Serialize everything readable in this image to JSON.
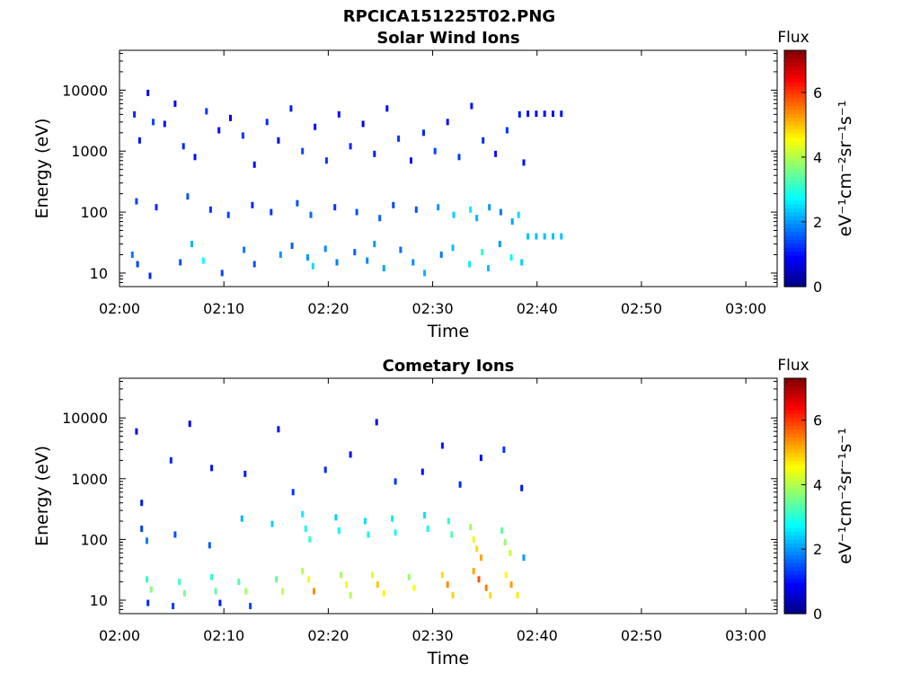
{
  "figure": {
    "title": "RPCICA151225T02.PNG"
  },
  "chart_data": [
    {
      "type": "heatmap",
      "title": "Solar Wind Ions",
      "xlabel": "Time",
      "ylabel": "Energy (eV)",
      "x_tick_labels": [
        "02:00",
        "02:10",
        "02:20",
        "02:30",
        "02:40",
        "02:50",
        "03:00"
      ],
      "x_range_minutes": [
        0,
        63
      ],
      "y_scale": "log",
      "y_tick_labels": [
        "10",
        "100",
        "1000",
        "10000"
      ],
      "y_range": [
        6,
        45000
      ],
      "colorbar": {
        "label": "eV⁻¹cm⁻²sr⁻¹s⁻¹",
        "title": "Flux",
        "range": [
          0,
          7.3
        ],
        "tick_labels": [
          "0",
          "2",
          "4",
          "6"
        ]
      },
      "cells": [
        [
          1.3,
          4000,
          1.2
        ],
        [
          1.8,
          1500,
          1.0
        ],
        [
          2.6,
          9000,
          0.8
        ],
        [
          3.1,
          3000,
          1.4
        ],
        [
          4.2,
          2800,
          1.0
        ],
        [
          5.2,
          6000,
          0.9
        ],
        [
          6.0,
          1200,
          1.2
        ],
        [
          7.1,
          800,
          1.0
        ],
        [
          8.2,
          4500,
          1.3
        ],
        [
          9.4,
          2200,
          1.0
        ],
        [
          10.5,
          3500,
          0.8
        ],
        [
          11.7,
          1800,
          1.3
        ],
        [
          12.8,
          600,
          1.0
        ],
        [
          14.0,
          3000,
          1.2
        ],
        [
          15.1,
          1500,
          0.9
        ],
        [
          16.3,
          5000,
          1.1
        ],
        [
          17.4,
          1000,
          1.4
        ],
        [
          18.6,
          2500,
          1.0
        ],
        [
          19.7,
          700,
          1.3
        ],
        [
          20.9,
          4000,
          1.0
        ],
        [
          22.0,
          1200,
          1.2
        ],
        [
          23.2,
          2800,
          0.9
        ],
        [
          24.3,
          900,
          1.1
        ],
        [
          25.5,
          5000,
          1.0
        ],
        [
          26.6,
          1600,
          1.3
        ],
        [
          27.8,
          700,
          1.0
        ],
        [
          29.0,
          2000,
          1.2
        ],
        [
          30.1,
          1000,
          1.4
        ],
        [
          31.3,
          3000,
          1.0
        ],
        [
          32.4,
          800,
          1.3
        ],
        [
          33.6,
          5500,
          1.0
        ],
        [
          34.7,
          1500,
          1.2
        ],
        [
          35.9,
          900,
          1.0
        ],
        [
          37.0,
          2200,
          1.3
        ],
        [
          38.2,
          4000,
          1.1
        ],
        [
          38.6,
          650,
          1.0
        ],
        [
          1.5,
          150,
          1.4
        ],
        [
          3.4,
          120,
          1.2
        ],
        [
          6.4,
          180,
          1.5
        ],
        [
          8.6,
          110,
          1.3
        ],
        [
          10.3,
          90,
          1.4
        ],
        [
          12.6,
          130,
          1.2
        ],
        [
          14.4,
          100,
          1.3
        ],
        [
          16.9,
          140,
          1.5
        ],
        [
          18.2,
          90,
          1.7
        ],
        [
          20.5,
          120,
          1.3
        ],
        [
          22.6,
          100,
          1.5
        ],
        [
          24.8,
          80,
          1.6
        ],
        [
          26.1,
          130,
          1.4
        ],
        [
          28.3,
          110,
          1.5
        ],
        [
          30.4,
          120,
          2.0
        ],
        [
          31.9,
          90,
          2.4
        ],
        [
          33.5,
          110,
          2.6
        ],
        [
          34.1,
          80,
          2.2
        ],
        [
          35.3,
          120,
          2.0
        ],
        [
          36.4,
          100,
          1.8
        ],
        [
          37.5,
          70,
          2.1
        ],
        [
          38.1,
          90,
          2.5
        ],
        [
          1.1,
          20,
          1.8
        ],
        [
          1.6,
          14,
          1.4
        ],
        [
          2.8,
          9,
          1.2
        ],
        [
          5.7,
          15,
          1.5
        ],
        [
          6.8,
          30,
          2.2
        ],
        [
          7.9,
          16,
          2.8
        ],
        [
          9.7,
          10,
          1.4
        ],
        [
          11.8,
          24,
          1.8
        ],
        [
          12.8,
          14,
          1.5
        ],
        [
          15.3,
          20,
          2.0
        ],
        [
          16.4,
          28,
          1.6
        ],
        [
          17.9,
          18,
          2.0
        ],
        [
          18.4,
          13,
          2.5
        ],
        [
          19.6,
          25,
          1.9
        ],
        [
          20.7,
          15,
          1.8
        ],
        [
          22.4,
          22,
          1.6
        ],
        [
          23.6,
          16,
          1.9
        ],
        [
          24.3,
          30,
          2.0
        ],
        [
          25.2,
          12,
          2.1
        ],
        [
          26.8,
          24,
          1.7
        ],
        [
          28.0,
          15,
          1.9
        ],
        [
          29.1,
          10,
          2.2
        ],
        [
          30.7,
          20,
          1.8
        ],
        [
          31.8,
          26,
          2.3
        ],
        [
          33.4,
          14,
          2.6
        ],
        [
          34.6,
          22,
          3.1
        ],
        [
          35.2,
          12,
          2.3
        ],
        [
          36.3,
          30,
          2.0
        ],
        [
          37.4,
          18,
          2.7
        ],
        [
          38.4,
          15,
          2.4
        ],
        [
          39.0,
          4100,
          1.0
        ],
        [
          39.8,
          4100,
          1.0
        ],
        [
          40.6,
          4100,
          1.0
        ],
        [
          41.4,
          4100,
          1.0
        ],
        [
          42.2,
          4100,
          1.0
        ],
        [
          39.0,
          40,
          2.3
        ],
        [
          39.8,
          40,
          2.3
        ],
        [
          40.6,
          40,
          2.3
        ],
        [
          41.4,
          40,
          2.3
        ],
        [
          42.2,
          40,
          2.3
        ]
      ]
    },
    {
      "type": "heatmap",
      "title": "Cometary Ions",
      "xlabel": "Time",
      "ylabel": "Energy (eV)",
      "x_tick_labels": [
        "02:00",
        "02:10",
        "02:20",
        "02:30",
        "02:40",
        "02:50",
        "03:00"
      ],
      "x_range_minutes": [
        0,
        63
      ],
      "y_scale": "log",
      "y_tick_labels": [
        "10",
        "100",
        "1000",
        "10000"
      ],
      "y_range": [
        6,
        45000
      ],
      "colorbar": {
        "label": "eV⁻¹cm⁻²sr⁻¹s⁻¹",
        "title": "Flux",
        "range": [
          0,
          7.3
        ],
        "tick_labels": [
          "0",
          "2",
          "4",
          "6"
        ]
      },
      "cells": [
        [
          1.5,
          6000,
          1.0
        ],
        [
          2.0,
          400,
          1.1
        ],
        [
          4.8,
          2000,
          1.2
        ],
        [
          6.6,
          8000,
          0.9
        ],
        [
          8.7,
          1500,
          1.0
        ],
        [
          11.9,
          1200,
          1.1
        ],
        [
          15.1,
          6500,
          1.0
        ],
        [
          16.5,
          600,
          1.3
        ],
        [
          19.6,
          1400,
          1.2
        ],
        [
          22.0,
          2500,
          1.0
        ],
        [
          24.5,
          8500,
          0.9
        ],
        [
          26.3,
          900,
          1.3
        ],
        [
          28.9,
          1300,
          1.0
        ],
        [
          30.8,
          3500,
          1.1
        ],
        [
          32.5,
          800,
          1.2
        ],
        [
          34.5,
          2200,
          1.0
        ],
        [
          36.7,
          3000,
          1.3
        ],
        [
          38.4,
          700,
          1.0
        ],
        [
          2.0,
          150,
          1.4
        ],
        [
          2.5,
          95,
          1.8
        ],
        [
          5.2,
          120,
          1.5
        ],
        [
          8.5,
          80,
          1.6
        ],
        [
          11.6,
          220,
          2.2
        ],
        [
          14.5,
          180,
          2.4
        ],
        [
          17.4,
          260,
          2.6
        ],
        [
          17.7,
          150,
          2.9
        ],
        [
          18.1,
          100,
          3.1
        ],
        [
          20.6,
          230,
          2.4
        ],
        [
          20.9,
          140,
          2.7
        ],
        [
          23.4,
          200,
          2.5
        ],
        [
          23.7,
          120,
          2.8
        ],
        [
          26.0,
          220,
          2.6
        ],
        [
          26.3,
          130,
          2.9
        ],
        [
          29.1,
          250,
          2.5
        ],
        [
          29.4,
          150,
          2.8
        ],
        [
          31.4,
          200,
          3.0
        ],
        [
          31.7,
          120,
          3.3
        ],
        [
          33.5,
          160,
          3.8
        ],
        [
          33.8,
          100,
          4.4
        ],
        [
          34.1,
          70,
          4.8
        ],
        [
          34.5,
          50,
          5.2
        ],
        [
          36.5,
          140,
          3.4
        ],
        [
          36.8,
          90,
          3.8
        ],
        [
          37.3,
          60,
          4.2
        ],
        [
          38.6,
          50,
          2.0
        ],
        [
          2.5,
          22,
          3.1
        ],
        [
          2.9,
          15,
          3.7
        ],
        [
          5.6,
          20,
          3.2
        ],
        [
          6.1,
          13,
          3.6
        ],
        [
          8.7,
          24,
          3.0
        ],
        [
          9.1,
          14,
          3.4
        ],
        [
          11.3,
          20,
          3.3
        ],
        [
          12.0,
          14,
          3.9
        ],
        [
          14.9,
          22,
          3.5
        ],
        [
          15.5,
          14,
          4.1
        ],
        [
          17.4,
          30,
          4.0
        ],
        [
          18.0,
          22,
          4.6
        ],
        [
          18.5,
          14,
          5.4
        ],
        [
          21.1,
          26,
          3.9
        ],
        [
          21.6,
          18,
          4.5
        ],
        [
          22.0,
          12,
          4.0
        ],
        [
          24.1,
          26,
          4.4
        ],
        [
          24.6,
          18,
          5.0
        ],
        [
          25.2,
          13,
          4.6
        ],
        [
          27.6,
          24,
          3.8
        ],
        [
          28.1,
          16,
          4.5
        ],
        [
          30.8,
          26,
          4.8
        ],
        [
          31.3,
          18,
          5.4
        ],
        [
          31.8,
          12,
          4.9
        ],
        [
          33.8,
          30,
          5.2
        ],
        [
          34.3,
          22,
          5.8
        ],
        [
          35.0,
          16,
          5.5
        ],
        [
          35.4,
          12,
          4.8
        ],
        [
          36.9,
          26,
          4.6
        ],
        [
          37.4,
          18,
          5.3
        ],
        [
          38.0,
          12,
          4.7
        ],
        [
          2.6,
          9,
          1.2
        ],
        [
          5.0,
          8,
          1.3
        ],
        [
          9.5,
          9,
          1.1
        ],
        [
          12.4,
          8,
          1.4
        ]
      ]
    }
  ]
}
